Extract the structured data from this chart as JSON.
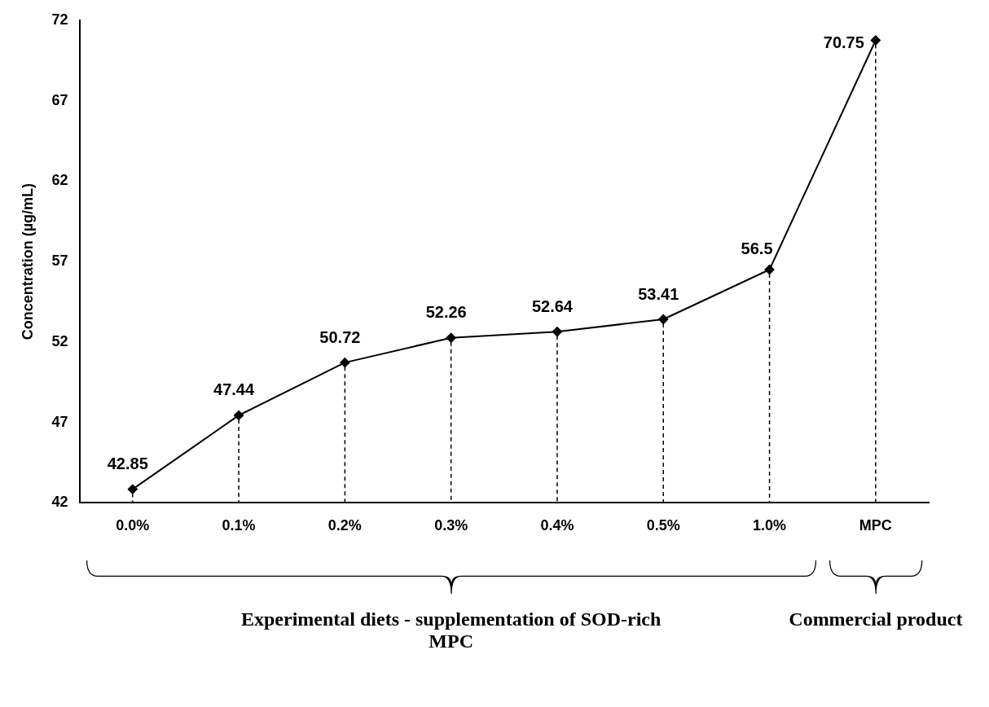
{
  "chart_data": {
    "type": "line",
    "ylabel": "Concentration (µg/mL)",
    "categories": [
      "0.0%",
      "0.1%",
      "0.2%",
      "0.3%",
      "0.4%",
      "0.5%",
      "1.0%",
      "MPC"
    ],
    "values": [
      42.85,
      47.44,
      50.72,
      52.26,
      52.64,
      53.41,
      56.5,
      70.75
    ],
    "color": "#000000",
    "marker": "diamond",
    "line_style": "solid",
    "data_labels": true,
    "ylim": [
      42,
      72
    ],
    "yticks": [
      42,
      47,
      52,
      57,
      62,
      67,
      72
    ],
    "grid": "x",
    "legend": false,
    "annotations": [
      "Experimental diets - supplementation of SOD-rich MPC",
      "Commercial product"
    ]
  }
}
